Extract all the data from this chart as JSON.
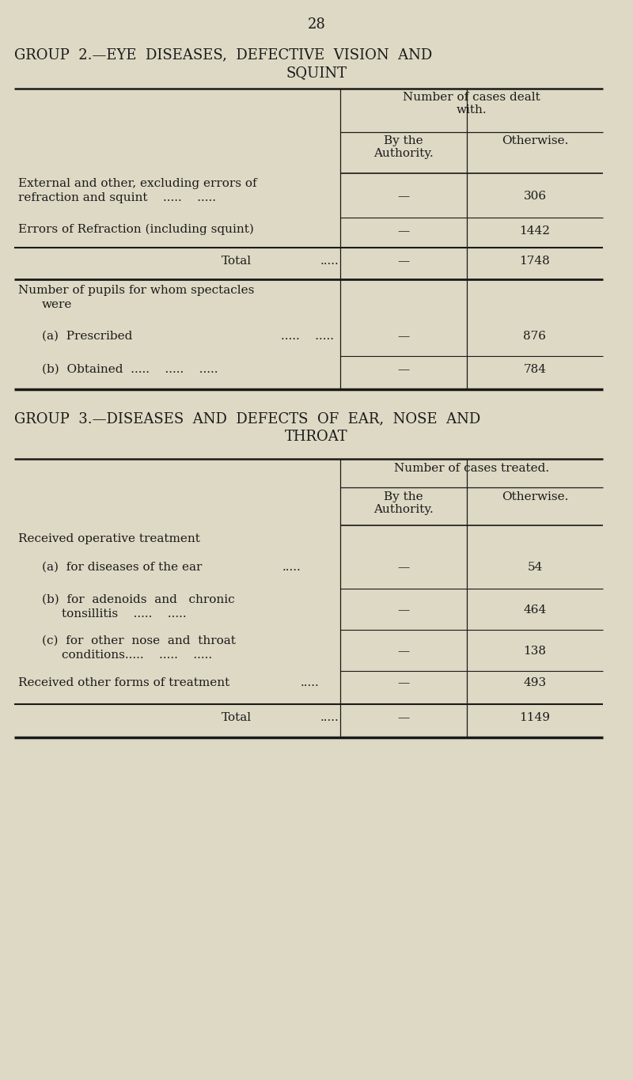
{
  "bg_color": "#ddd9c4",
  "text_color": "#1a1a1a",
  "page_number": "28",
  "group2_title_line1": "GROUP  2.—EYE  DISEASES,  DEFECTIVE  VISION  AND",
  "group2_title_line2": "SQUINT",
  "group3_title_line1": "GROUP  3.—DISEASES  AND  DEFECTS  OF  EAR,  NOSE  AND",
  "group3_title_line2": "THROAT"
}
